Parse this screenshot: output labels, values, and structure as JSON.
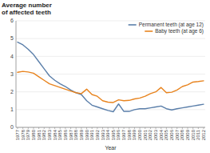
{
  "chart_data": {
    "type": "line",
    "title": "Average number\nof affected teeth",
    "x_label": "Year",
    "x": [
      1977,
      1978,
      1979,
      1980,
      1981,
      1982,
      1983,
      1984,
      1985,
      1986,
      1987,
      1988,
      1989,
      1990,
      1991,
      1992,
      1993,
      1994,
      1995,
      1996,
      1997,
      1998,
      1999,
      2000,
      2001,
      2002,
      2003,
      2004,
      2005,
      2006,
      2007,
      2008,
      2009,
      2010,
      2011,
      2012
    ],
    "series": [
      {
        "name": "Permanent teeth (at age 12)",
        "color": "#5b7faa",
        "values": [
          4.8,
          4.65,
          4.4,
          4.1,
          3.7,
          3.3,
          2.9,
          2.65,
          2.45,
          2.3,
          2.1,
          1.95,
          1.85,
          1.5,
          1.25,
          1.15,
          1.05,
          0.95,
          0.88,
          1.32,
          0.9,
          0.9,
          1.0,
          1.05,
          1.05,
          1.1,
          1.15,
          1.2,
          1.05,
          0.98,
          1.05,
          1.1,
          1.15,
          1.2,
          1.25,
          1.3
        ]
      },
      {
        "name": "Baby teeth (at age 6)",
        "color": "#e8841f",
        "values": [
          3.1,
          3.15,
          3.12,
          3.05,
          2.85,
          2.65,
          2.45,
          2.35,
          2.25,
          2.15,
          2.05,
          1.95,
          1.9,
          2.15,
          1.85,
          1.75,
          1.5,
          1.42,
          1.4,
          1.55,
          1.5,
          1.52,
          1.6,
          1.65,
          1.75,
          1.9,
          2.0,
          2.25,
          1.95,
          1.98,
          2.1,
          2.3,
          2.4,
          2.55,
          2.58,
          2.62
        ]
      }
    ],
    "xlim": [
      1976.7,
      2012.3
    ],
    "xticks": [
      1977,
      1978,
      1979,
      1980,
      1981,
      1982,
      1983,
      1984,
      1985,
      1986,
      1987,
      1988,
      1989,
      1990,
      1991,
      1992,
      1993,
      1994,
      1995,
      1996,
      1997,
      1998,
      1999,
      2000,
      2001,
      2002,
      2003,
      2004,
      2005,
      2006,
      2007,
      2008,
      2009,
      2010,
      2011,
      2012
    ],
    "ylim": [
      0,
      6
    ],
    "yticks": [
      0,
      1,
      2,
      3,
      4,
      5,
      6
    ],
    "grid": true,
    "legend": "upper right"
  }
}
